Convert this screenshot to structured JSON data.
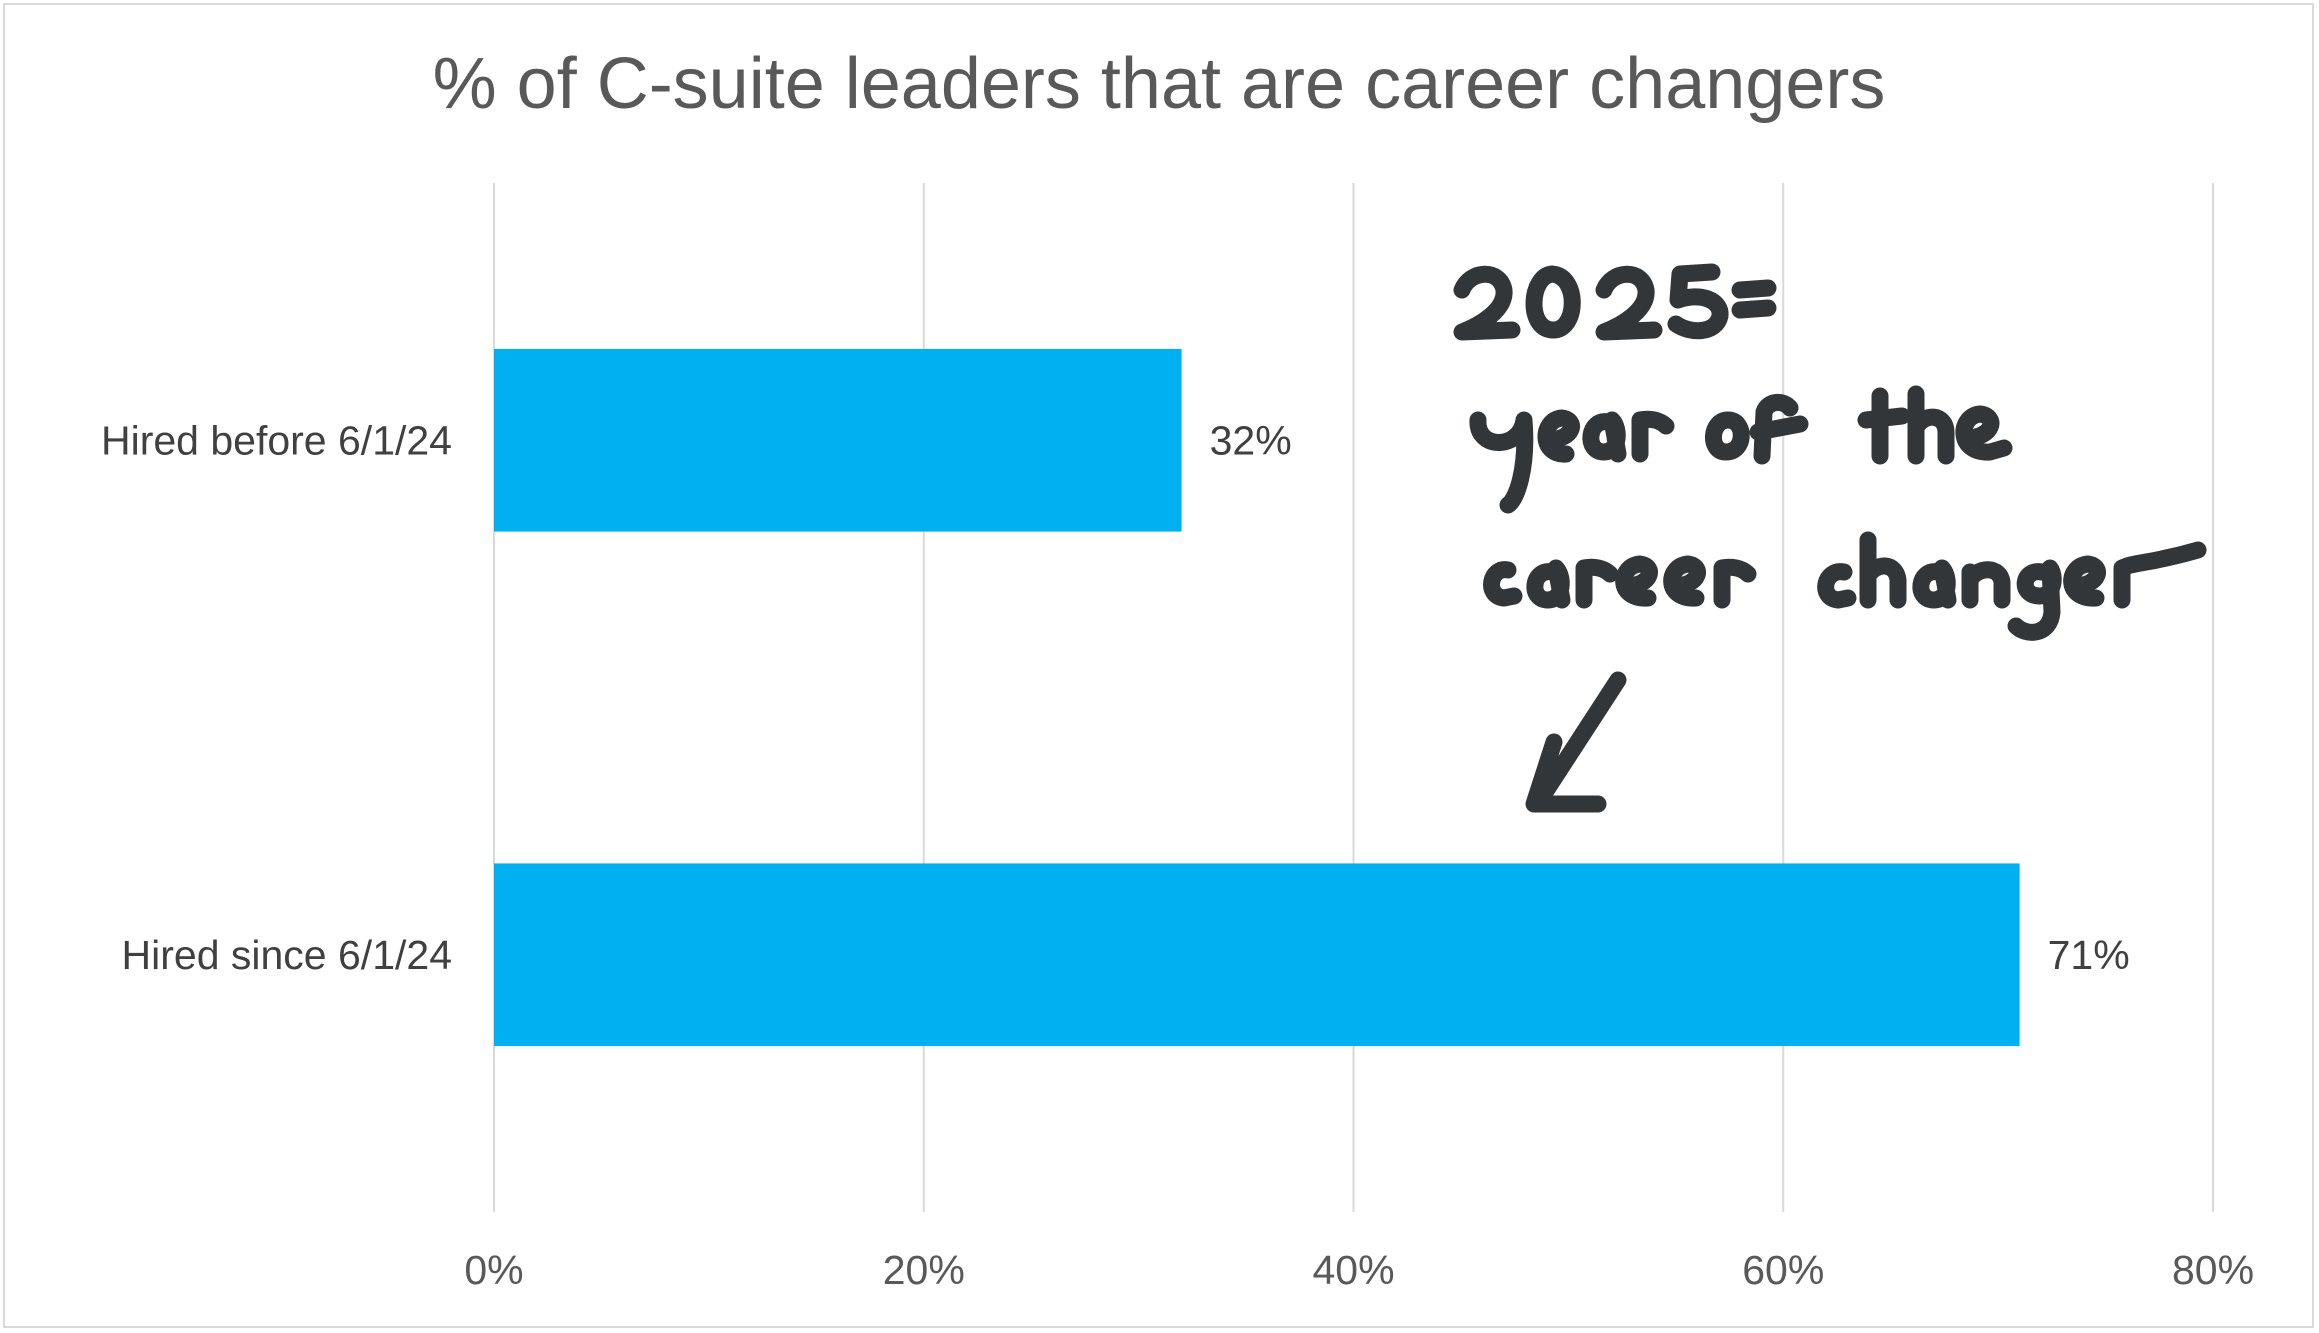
{
  "chart_data": {
    "type": "bar",
    "orientation": "horizontal",
    "title": "% of C-suite leaders that are career changers",
    "categories": [
      "Hired before 6/1/24",
      "Hired since 6/1/24"
    ],
    "values": [
      32,
      71
    ],
    "data_labels": [
      "32%",
      "71%"
    ],
    "xlim": [
      0,
      80
    ],
    "xticks": [
      0,
      20,
      40,
      60,
      80
    ],
    "xtick_labels": [
      "0%",
      "20%",
      "40%",
      "60%",
      "80%"
    ],
    "grid": "vertical",
    "legend": "none",
    "bar_color": "#00B0F0",
    "annotation": {
      "text": "2025 = year of the career changer",
      "style": "handwritten",
      "points_to": "Hired since 6/1/24"
    }
  }
}
